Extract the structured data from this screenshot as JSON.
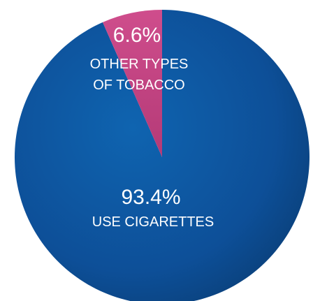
{
  "chart_data": {
    "type": "pie",
    "slices": [
      {
        "value": 93.4,
        "value_label": "93.4%",
        "label_lines": [
          "USE CIGARETTES"
        ],
        "color": "#0f5ca8",
        "color_dark": "#0a3f78"
      },
      {
        "value": 6.6,
        "value_label": "6.6%",
        "label_lines": [
          "OTHER TYPES",
          "OF TOBACCO"
        ],
        "color": "#d0508f",
        "color_dark": "#b43a77"
      }
    ],
    "start": "12 o'clock",
    "direction": "counterclockwise for the smaller slice"
  }
}
